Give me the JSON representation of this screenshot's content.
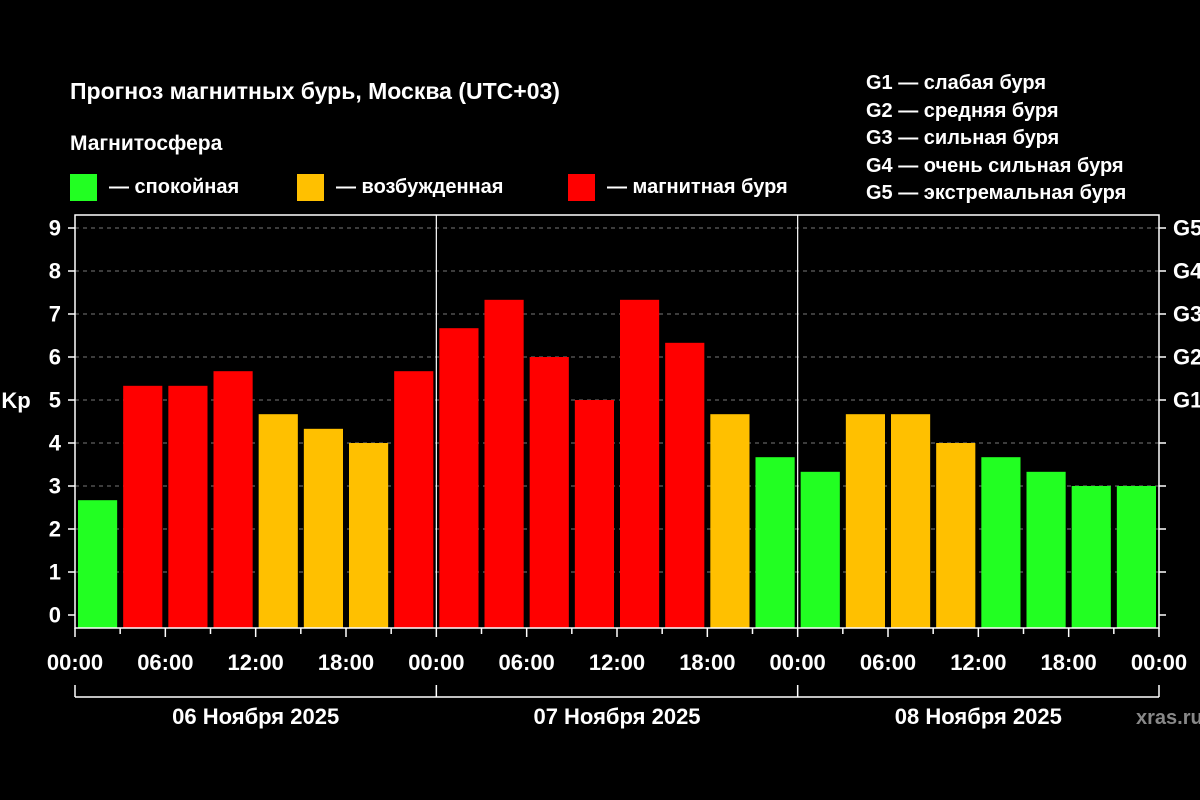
{
  "chart_data": {
    "type": "bar",
    "title": "Прогноз магнитных бурь, Москва (UTC+03)",
    "subtitle": "Магнитосфера",
    "ylabel": "Kp",
    "ylim": [
      0,
      9
    ],
    "yticks": [
      "0",
      "1",
      "2",
      "3",
      "4",
      "5",
      "6",
      "7",
      "8",
      "9"
    ],
    "right_ticks": [
      {
        "label": "G1",
        "value": 5
      },
      {
        "label": "G2",
        "value": 6
      },
      {
        "label": "G3",
        "value": 7
      },
      {
        "label": "G4",
        "value": 8
      },
      {
        "label": "G5",
        "value": 9
      }
    ],
    "xtick_labels": [
      "00:00",
      "06:00",
      "12:00",
      "18:00",
      "00:00",
      "06:00",
      "12:00",
      "18:00",
      "00:00",
      "06:00",
      "12:00",
      "18:00",
      "00:00"
    ],
    "days": [
      "06 Ноября 2025",
      "07 Ноября 2025",
      "08 Ноября 2025"
    ],
    "values": [
      2.67,
      5.33,
      5.33,
      5.67,
      4.67,
      4.33,
      4.0,
      5.67,
      6.67,
      7.33,
      6.0,
      5.0,
      7.33,
      6.33,
      4.67,
      3.67,
      3.33,
      4.67,
      4.67,
      4.0,
      3.67,
      3.33,
      3.0,
      3.0
    ],
    "levels": [
      "calm",
      "storm",
      "storm",
      "storm",
      "excited",
      "excited",
      "excited",
      "storm",
      "storm",
      "storm",
      "storm",
      "storm",
      "storm",
      "storm",
      "excited",
      "calm",
      "calm",
      "excited",
      "excited",
      "excited",
      "calm",
      "calm",
      "calm",
      "calm"
    ],
    "grid": true
  },
  "legend": [
    {
      "key": "calm",
      "label": "— спокойная",
      "color": "#22FF22"
    },
    {
      "key": "excited",
      "label": "— возбужденная",
      "color": "#FFC000"
    },
    {
      "key": "storm",
      "label": "— магнитная буря",
      "color": "#FF0000"
    }
  ],
  "storm_legend": [
    "G1 — слабая буря",
    "G2 — средняя буря",
    "G3 — сильная буря",
    "G4 — очень сильная буря",
    "G5 — экстремальная буря"
  ],
  "watermark": "xras.ru"
}
